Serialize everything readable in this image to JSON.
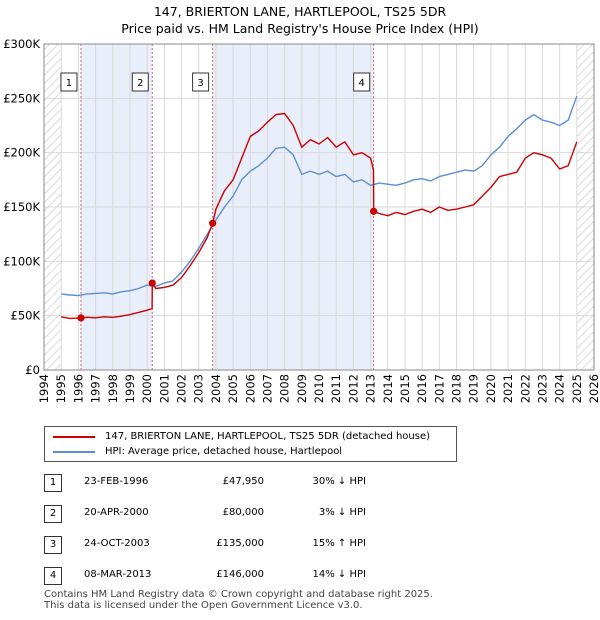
{
  "chart_data": {
    "type": "line",
    "title": "147, BRIERTON LANE, HARTLEPOOL, TS25 5DR",
    "subtitle": "Price paid vs. HM Land Registry's House Price Index (HPI)",
    "xlabel": "",
    "ylabel": "",
    "xlim": [
      1994,
      2026
    ],
    "ylim": [
      0,
      300000
    ],
    "x_ticks": [
      "1994",
      "1995",
      "1996",
      "1997",
      "1998",
      "1999",
      "2000",
      "2001",
      "2002",
      "2003",
      "2004",
      "2005",
      "2006",
      "2007",
      "2008",
      "2009",
      "2010",
      "2011",
      "2012",
      "2013",
      "2014",
      "2015",
      "2016",
      "2017",
      "2018",
      "2019",
      "2020",
      "2021",
      "2022",
      "2023",
      "2024",
      "2025",
      "2026"
    ],
    "y_ticks": [
      {
        "value": 0,
        "label": "£0"
      },
      {
        "value": 50000,
        "label": "£50K"
      },
      {
        "value": 100000,
        "label": "£100K"
      },
      {
        "value": 150000,
        "label": "£150K"
      },
      {
        "value": 200000,
        "label": "£200K"
      },
      {
        "value": 250000,
        "label": "£250K"
      },
      {
        "value": 300000,
        "label": "£300K"
      }
    ],
    "colors": {
      "property": "#cc0000",
      "hpi": "#5b8fd1",
      "shade": "#e8eefa",
      "grid": "#d9d9d9",
      "marker_line": "#e06666"
    },
    "shaded_periods": [
      [
        1996.15,
        2000.3
      ],
      [
        2003.81,
        2013.18
      ]
    ],
    "hatched_regions": [
      [
        1994,
        1995
      ],
      [
        2025.0,
        2026
      ]
    ],
    "series": [
      {
        "name": "147, BRIERTON LANE, HARTLEPOOL, TS25 5DR (detached house)",
        "color": "#cc0000",
        "x": [
          1995.0,
          1995.5,
          1996.15,
          1996.5,
          1997.0,
          1997.5,
          1998.0,
          1998.5,
          1999.0,
          1999.5,
          2000.0,
          2000.29,
          2000.3,
          2000.5,
          2001.0,
          2001.5,
          2002.0,
          2002.5,
          2003.0,
          2003.5,
          2003.81,
          2004.0,
          2004.5,
          2005.0,
          2005.5,
          2006.0,
          2006.5,
          2007.0,
          2007.5,
          2008.0,
          2008.5,
          2009.0,
          2009.5,
          2010.0,
          2010.5,
          2011.0,
          2011.5,
          2012.0,
          2012.5,
          2013.0,
          2013.17,
          2013.18,
          2013.5,
          2014.0,
          2014.5,
          2015.0,
          2015.5,
          2016.0,
          2016.5,
          2017.0,
          2017.5,
          2018.0,
          2018.5,
          2019.0,
          2019.5,
          2020.0,
          2020.5,
          2021.0,
          2021.5,
          2022.0,
          2022.5,
          2023.0,
          2023.5,
          2024.0,
          2024.5,
          2025.0
        ],
        "values": [
          49000,
          47500,
          47950,
          48500,
          48000,
          49000,
          48500,
          49500,
          51000,
          53000,
          55000,
          56500,
          80000,
          75000,
          76000,
          78000,
          85000,
          96000,
          108000,
          122000,
          135000,
          148000,
          165000,
          175000,
          195000,
          215000,
          220000,
          228000,
          235000,
          236000,
          225000,
          205000,
          212000,
          208000,
          214000,
          205000,
          210000,
          198000,
          200000,
          195000,
          184000,
          146000,
          144000,
          142000,
          145000,
          143000,
          146000,
          148000,
          145000,
          150000,
          147000,
          148000,
          150000,
          152000,
          160000,
          168000,
          178000,
          180000,
          182000,
          195000,
          200000,
          198000,
          195000,
          185000,
          188000,
          210000
        ]
      },
      {
        "name": "HPI: Average price, detached house, Hartlepool",
        "color": "#5b8fd1",
        "x": [
          1995.0,
          1995.5,
          1996.0,
          1996.5,
          1997.0,
          1997.5,
          1998.0,
          1998.5,
          1999.0,
          1999.5,
          2000.0,
          2000.5,
          2001.0,
          2001.5,
          2002.0,
          2002.5,
          2003.0,
          2003.5,
          2004.0,
          2004.5,
          2005.0,
          2005.5,
          2006.0,
          2006.5,
          2007.0,
          2007.5,
          2008.0,
          2008.5,
          2009.0,
          2009.5,
          2010.0,
          2010.5,
          2011.0,
          2011.5,
          2012.0,
          2012.5,
          2013.0,
          2013.5,
          2014.0,
          2014.5,
          2015.0,
          2015.5,
          2016.0,
          2016.5,
          2017.0,
          2017.5,
          2018.0,
          2018.5,
          2019.0,
          2019.5,
          2020.0,
          2020.5,
          2021.0,
          2021.5,
          2022.0,
          2022.5,
          2023.0,
          2023.5,
          2024.0,
          2024.5,
          2025.0
        ],
        "values": [
          70000,
          69000,
          68500,
          70000,
          70500,
          71000,
          70000,
          72000,
          73000,
          75000,
          78000,
          77000,
          80000,
          82000,
          90000,
          100000,
          112000,
          125000,
          138000,
          150000,
          160000,
          175000,
          183000,
          188000,
          195000,
          204000,
          205000,
          198000,
          180000,
          183000,
          180000,
          183000,
          178000,
          180000,
          173000,
          175000,
          170000,
          172000,
          171000,
          170000,
          172000,
          175000,
          176000,
          174000,
          178000,
          180000,
          182000,
          184000,
          183000,
          188000,
          198000,
          205000,
          215000,
          222000,
          230000,
          235000,
          230000,
          228000,
          225000,
          230000,
          252000
        ]
      }
    ],
    "sale_points": [
      {
        "n": 1,
        "x": 1996.15,
        "value": 47950
      },
      {
        "n": 2,
        "x": 2000.3,
        "value": 80000
      },
      {
        "n": 3,
        "x": 2003.81,
        "value": 135000
      },
      {
        "n": 4,
        "x": 2013.18,
        "value": 146000
      }
    ]
  },
  "legend": {
    "property": "147, BRIERTON LANE, HARTLEPOOL, TS25 5DR (detached house)",
    "hpi": "HPI: Average price, detached house, Hartlepool"
  },
  "sales": [
    {
      "n": "1",
      "date": "23-FEB-1996",
      "price": "£47,950",
      "hpi": "30% ↓ HPI"
    },
    {
      "n": "2",
      "date": "20-APR-2000",
      "price": "£80,000",
      "hpi": "3% ↓ HPI"
    },
    {
      "n": "3",
      "date": "24-OCT-2003",
      "price": "£135,000",
      "hpi": "15% ↑ HPI"
    },
    {
      "n": "4",
      "date": "08-MAR-2013",
      "price": "£146,000",
      "hpi": "14% ↓ HPI"
    }
  ],
  "footer": {
    "line1": "Contains HM Land Registry data © Crown copyright and database right 2025.",
    "line2": "This data is licensed under the Open Government Licence v3.0."
  }
}
